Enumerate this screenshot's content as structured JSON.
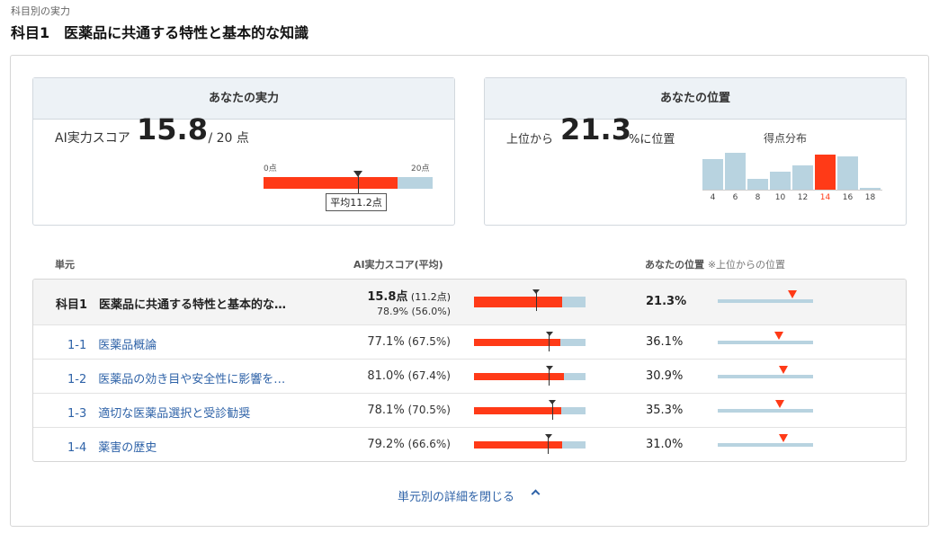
{
  "header": {
    "breadcrumb": "科目別の実力",
    "title": "科目1　医薬品に共通する特性と基本的な知識"
  },
  "ability_card": {
    "title": "あなたの実力",
    "score_label": "AI実力スコア",
    "score": "15.8",
    "score_max": " / 20 点",
    "scale_min": "0点",
    "scale_max": "20点",
    "avg_label": "平均11.2点",
    "score_fraction": 0.79,
    "avg_fraction": 0.56
  },
  "position_card": {
    "title": "あなたの位置",
    "prefix": "上位から",
    "value": "21.3",
    "suffix": "%に位置",
    "histogram_title": "得点分布",
    "bins": [
      {
        "label": "4",
        "value": 0.59
      },
      {
        "label": "6",
        "value": 0.71
      },
      {
        "label": "8",
        "value": 0.2
      },
      {
        "label": "10",
        "value": 0.34
      },
      {
        "label": "12",
        "value": 0.46
      },
      {
        "label": "14",
        "value": 0.68
      },
      {
        "label": "16",
        "value": 0.64
      },
      {
        "label": "18",
        "value": 0.03
      }
    ],
    "highlight_bin": 5
  },
  "table": {
    "headers": {
      "unit": "単元",
      "score": "AI実力スコア(平均)",
      "position": "あなたの位置",
      "position_note": "※上位からの位置"
    },
    "main_row": {
      "unit": "科目1　医薬品に共通する特性と基本的な…",
      "score": "15.8点",
      "score_avg": " (11.2点)",
      "percent_line": "78.9% (56.0%)",
      "score_fraction": 0.789,
      "avg_fraction": 0.56,
      "position": "21.3%",
      "position_fraction": 0.787
    },
    "rows": [
      {
        "unit": "1-1　医薬品概論",
        "score": "77.1%",
        "avg": " (67.5%)",
        "score_fraction": 0.771,
        "avg_fraction": 0.675,
        "position": "36.1%",
        "position_fraction": 0.639
      },
      {
        "unit": "1-2　医薬品の効き目や安全性に影響を…",
        "score": "81.0%",
        "avg": " (67.4%)",
        "score_fraction": 0.81,
        "avg_fraction": 0.674,
        "position": "30.9%",
        "position_fraction": 0.691
      },
      {
        "unit": "1-3　適切な医薬品選択と受診勧奨",
        "score": "78.1%",
        "avg": " (70.5%)",
        "score_fraction": 0.781,
        "avg_fraction": 0.705,
        "position": "35.3%",
        "position_fraction": 0.647
      },
      {
        "unit": "1-4　薬害の歴史",
        "score": "79.2%",
        "avg": " (66.6%)",
        "score_fraction": 0.792,
        "avg_fraction": 0.666,
        "position": "31.0%",
        "position_fraction": 0.69
      }
    ]
  },
  "toggle_label": "単元別の詳細を閉じる",
  "colors": {
    "accent": "#ff3a17",
    "track": "#b8d3e0",
    "link": "#2f63a8",
    "header_bg": "#edf2f6"
  }
}
